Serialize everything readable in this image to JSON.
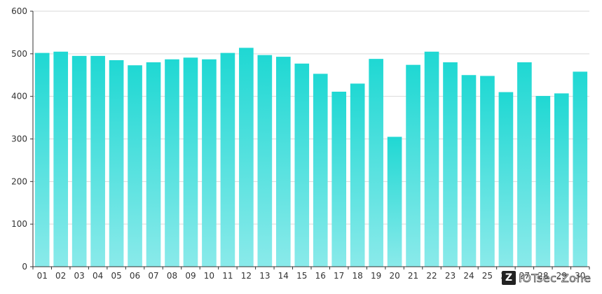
{
  "chart_data": {
    "type": "bar",
    "categories": [
      "01",
      "02",
      "03",
      "04",
      "05",
      "06",
      "07",
      "08",
      "09",
      "10",
      "11",
      "12",
      "13",
      "14",
      "15",
      "16",
      "17",
      "18",
      "19",
      "20",
      "21",
      "22",
      "23",
      "24",
      "25",
      "26",
      "27",
      "28",
      "29",
      "30"
    ],
    "values": [
      502,
      505,
      495,
      495,
      485,
      473,
      480,
      487,
      491,
      487,
      502,
      514,
      497,
      493,
      477,
      453,
      411,
      430,
      488,
      305,
      474,
      505,
      480,
      450,
      448,
      410,
      480,
      401,
      407,
      458
    ],
    "title": "",
    "xlabel": "",
    "ylabel": "",
    "ylim": [
      0,
      600
    ],
    "yticks": [
      0,
      100,
      200,
      300,
      400,
      500,
      600
    ],
    "grid": true,
    "bar_gradient_top": "#1fd8d3",
    "bar_gradient_bottom": "#8aeaea"
  },
  "watermark": {
    "badge": "Z",
    "text": "IOTsec-Zone"
  }
}
